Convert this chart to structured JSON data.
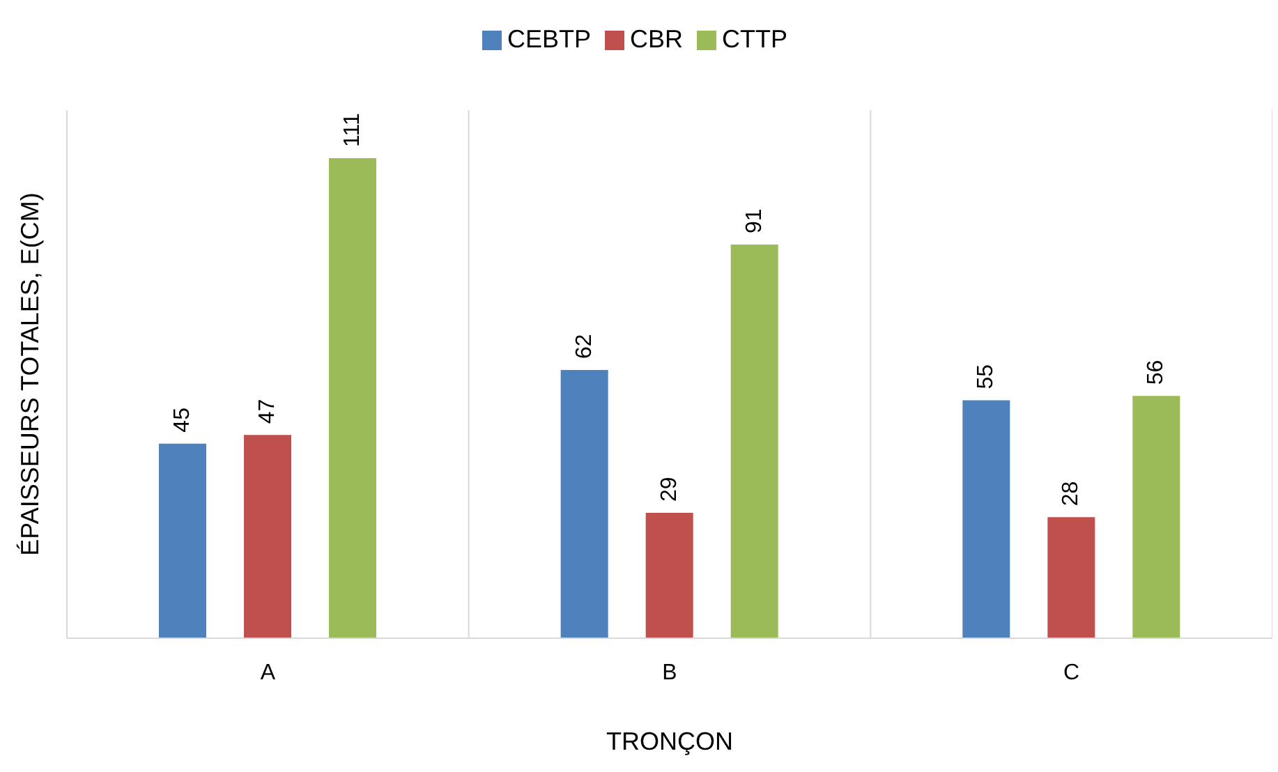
{
  "chart_data": {
    "type": "bar",
    "xlabel": "TRONÇON",
    "ylabel": "ÉPAISSEURS TOTALES, E(CM)",
    "categories": [
      "A",
      "B",
      "C"
    ],
    "series": [
      {
        "name": "CEBTP",
        "color": "#4f81bd",
        "values": [
          45,
          62,
          55
        ]
      },
      {
        "name": "CBR",
        "color": "#c0504d",
        "values": [
          47,
          29,
          28
        ]
      },
      {
        "name": "CTTP",
        "color": "#9bbb59",
        "values": [
          111,
          91,
          56
        ]
      }
    ],
    "data_labels": true,
    "grid": "x",
    "legend": "top"
  }
}
